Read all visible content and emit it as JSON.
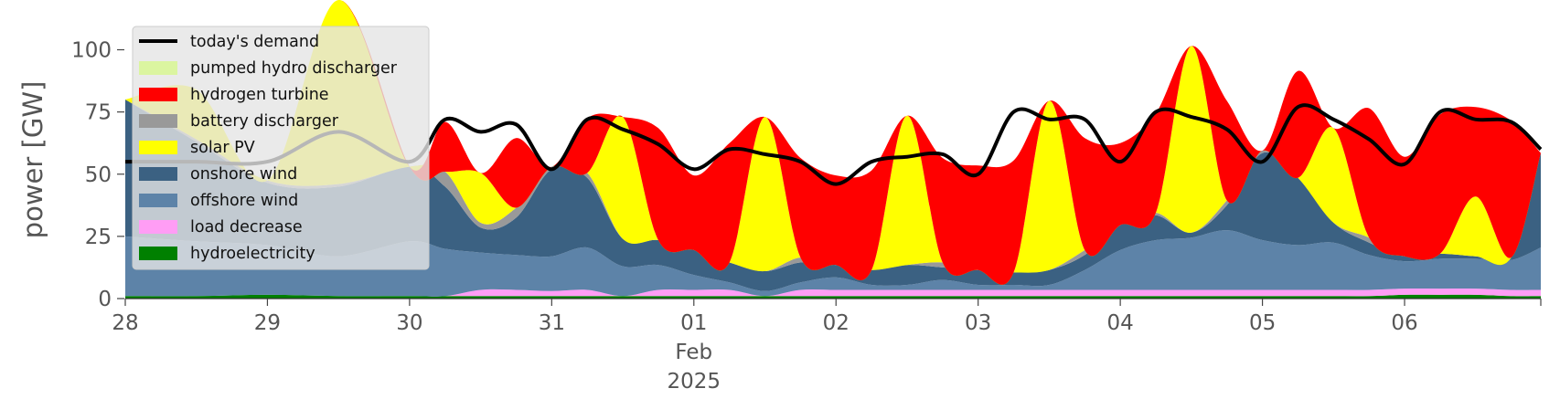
{
  "chart_data": {
    "type": "area",
    "title": "",
    "xlabel": "",
    "ylabel": "power [GW]",
    "ylim": [
      0,
      120
    ],
    "xlim": [
      "2025-01-28T00:00",
      "2025-02-06T23:00"
    ],
    "yticks": [
      0,
      25,
      50,
      75,
      100
    ],
    "ytick_labels": [
      "0",
      "25",
      "50",
      "75",
      "100"
    ],
    "xticks": [
      {
        "x": "2025-01-28T00:00",
        "label": "28"
      },
      {
        "x": "2025-01-29T00:00",
        "label": "29"
      },
      {
        "x": "2025-01-30T00:00",
        "label": "30"
      },
      {
        "x": "2025-01-31T00:00",
        "label": "31"
      },
      {
        "x": "2025-02-01T00:00",
        "label": "01",
        "sub1": "Feb",
        "sub2": "2025"
      },
      {
        "x": "2025-02-02T00:00",
        "label": "02"
      },
      {
        "x": "2025-02-03T00:00",
        "label": "03"
      },
      {
        "x": "2025-02-04T00:00",
        "label": "04"
      },
      {
        "x": "2025-02-05T00:00",
        "label": "05"
      },
      {
        "x": "2025-02-06T00:00",
        "label": "06"
      }
    ],
    "grid": false,
    "legend_position": "upper-left",
    "x": [
      "2025-01-28T00:00",
      "2025-01-28T12:00",
      "2025-01-29T00:00",
      "2025-01-29T12:00",
      "2025-01-30T00:00",
      "2025-01-30T06:00",
      "2025-01-30T12:00",
      "2025-01-30T18:00",
      "2025-01-31T00:00",
      "2025-01-31T06:00",
      "2025-01-31T12:00",
      "2025-01-31T18:00",
      "2025-02-01T00:00",
      "2025-02-01T06:00",
      "2025-02-01T12:00",
      "2025-02-01T18:00",
      "2025-02-02T00:00",
      "2025-02-02T06:00",
      "2025-02-02T12:00",
      "2025-02-02T18:00",
      "2025-02-03T00:00",
      "2025-02-03T06:00",
      "2025-02-03T12:00",
      "2025-02-03T18:00",
      "2025-02-04T00:00",
      "2025-02-04T06:00",
      "2025-02-04T12:00",
      "2025-02-04T18:00",
      "2025-02-05T00:00",
      "2025-02-05T06:00",
      "2025-02-05T12:00",
      "2025-02-05T18:00",
      "2025-02-06T00:00",
      "2025-02-06T06:00",
      "2025-02-06T12:00",
      "2025-02-06T18:00",
      "2025-02-06T23:00"
    ],
    "series": [
      {
        "name": "hydroelectricity",
        "color": "#008000",
        "values": [
          1,
          1,
          1.5,
          1,
          1,
          1,
          1,
          1,
          1,
          1,
          1,
          1,
          1,
          1,
          1,
          1,
          1,
          1,
          1,
          1,
          1,
          1,
          1,
          1,
          1,
          1,
          1,
          1,
          1,
          1,
          1,
          1,
          1.5,
          1.5,
          1.5,
          1,
          1
        ]
      },
      {
        "name": "load decrease",
        "color": "#ff9df5",
        "values": [
          0,
          0,
          0,
          0,
          0,
          0,
          2.5,
          2.5,
          2,
          2.5,
          0,
          2.5,
          2.5,
          2.5,
          0,
          2.5,
          2.5,
          2.5,
          2.5,
          2.5,
          2.5,
          2.5,
          2.5,
          2.5,
          2.5,
          2.5,
          2.5,
          2.5,
          2.5,
          2.5,
          2.5,
          2.5,
          2.5,
          2.5,
          2.5,
          2.5,
          2.5
        ]
      },
      {
        "name": "offshore wind",
        "color": "#5d83a8",
        "values": [
          24,
          22,
          20,
          16,
          22,
          19,
          15,
          14,
          14,
          17,
          12,
          10,
          6,
          3,
          2,
          3,
          5,
          2,
          2,
          4,
          2,
          2,
          2,
          8,
          16,
          20,
          21,
          24,
          20,
          18,
          19,
          14,
          11,
          12,
          12,
          12,
          17
        ]
      },
      {
        "name": "onshore wind",
        "color": "#3b6182",
        "values": [
          55,
          40,
          25,
          28,
          30,
          25,
          10,
          15,
          35,
          28,
          11,
          10,
          10,
          8,
          8,
          8,
          5,
          6,
          8,
          5,
          6,
          5,
          6,
          6,
          10,
          10,
          2,
          10,
          35,
          27,
          8,
          5,
          2,
          2,
          1,
          1,
          38
        ]
      },
      {
        "name": "battery discharger",
        "color": "#999999",
        "values": [
          0,
          1,
          1,
          1,
          0,
          6,
          2,
          4,
          1,
          2,
          0,
          0,
          0,
          0,
          0,
          2,
          0,
          0,
          0,
          2,
          0,
          0,
          0,
          2,
          0,
          1,
          0,
          2,
          1,
          0,
          0,
          2,
          0,
          0,
          0,
          0,
          0
        ]
      },
      {
        "name": "solar PV",
        "color": "#ffff00",
        "values": [
          0,
          20,
          0,
          75,
          0,
          0,
          20,
          0,
          0,
          0,
          49,
          0,
          0,
          0,
          62,
          0,
          0,
          0,
          60,
          0,
          0,
          0,
          68,
          0,
          0,
          0,
          75,
          0,
          0,
          0,
          38,
          0,
          0,
          0,
          24,
          0,
          0
        ]
      },
      {
        "name": "hydrogen turbine",
        "color": "#ff0000",
        "values": [
          0,
          0,
          0,
          0,
          0,
          20,
          0,
          28,
          0,
          22,
          0,
          45,
          30,
          48,
          0,
          40,
          36,
          40,
          0,
          42,
          42,
          45,
          0,
          45,
          33,
          40,
          0,
          40,
          0,
          43,
          0,
          52,
          40,
          56,
          36,
          55,
          0
        ]
      },
      {
        "name": "pumped hydro discharger",
        "color": "#dbf5a0",
        "values": [
          0,
          0,
          0,
          0,
          0,
          0,
          0,
          0,
          0,
          0,
          0,
          0,
          0,
          0,
          0,
          0,
          0,
          0,
          0,
          0,
          0,
          0,
          0,
          0,
          0,
          0,
          0,
          0,
          0,
          0,
          0,
          0,
          0,
          0,
          0,
          0,
          0
        ]
      }
    ],
    "demand": {
      "name": "today's demand",
      "color": "#000000",
      "values": [
        55,
        55,
        55,
        67,
        55,
        72,
        67,
        70,
        52,
        72,
        68,
        62,
        52,
        60,
        58,
        55,
        46,
        55,
        57,
        58,
        50,
        75,
        72,
        72,
        55,
        75,
        73,
        68,
        55,
        77,
        72,
        64,
        54,
        75,
        72,
        71,
        60
      ]
    },
    "legend": [
      "today's demand",
      "pumped hydro discharger",
      "hydrogen turbine",
      "battery discharger",
      "solar PV",
      "onshore wind",
      "offshore wind",
      "load decrease",
      "hydroelectricity"
    ]
  }
}
